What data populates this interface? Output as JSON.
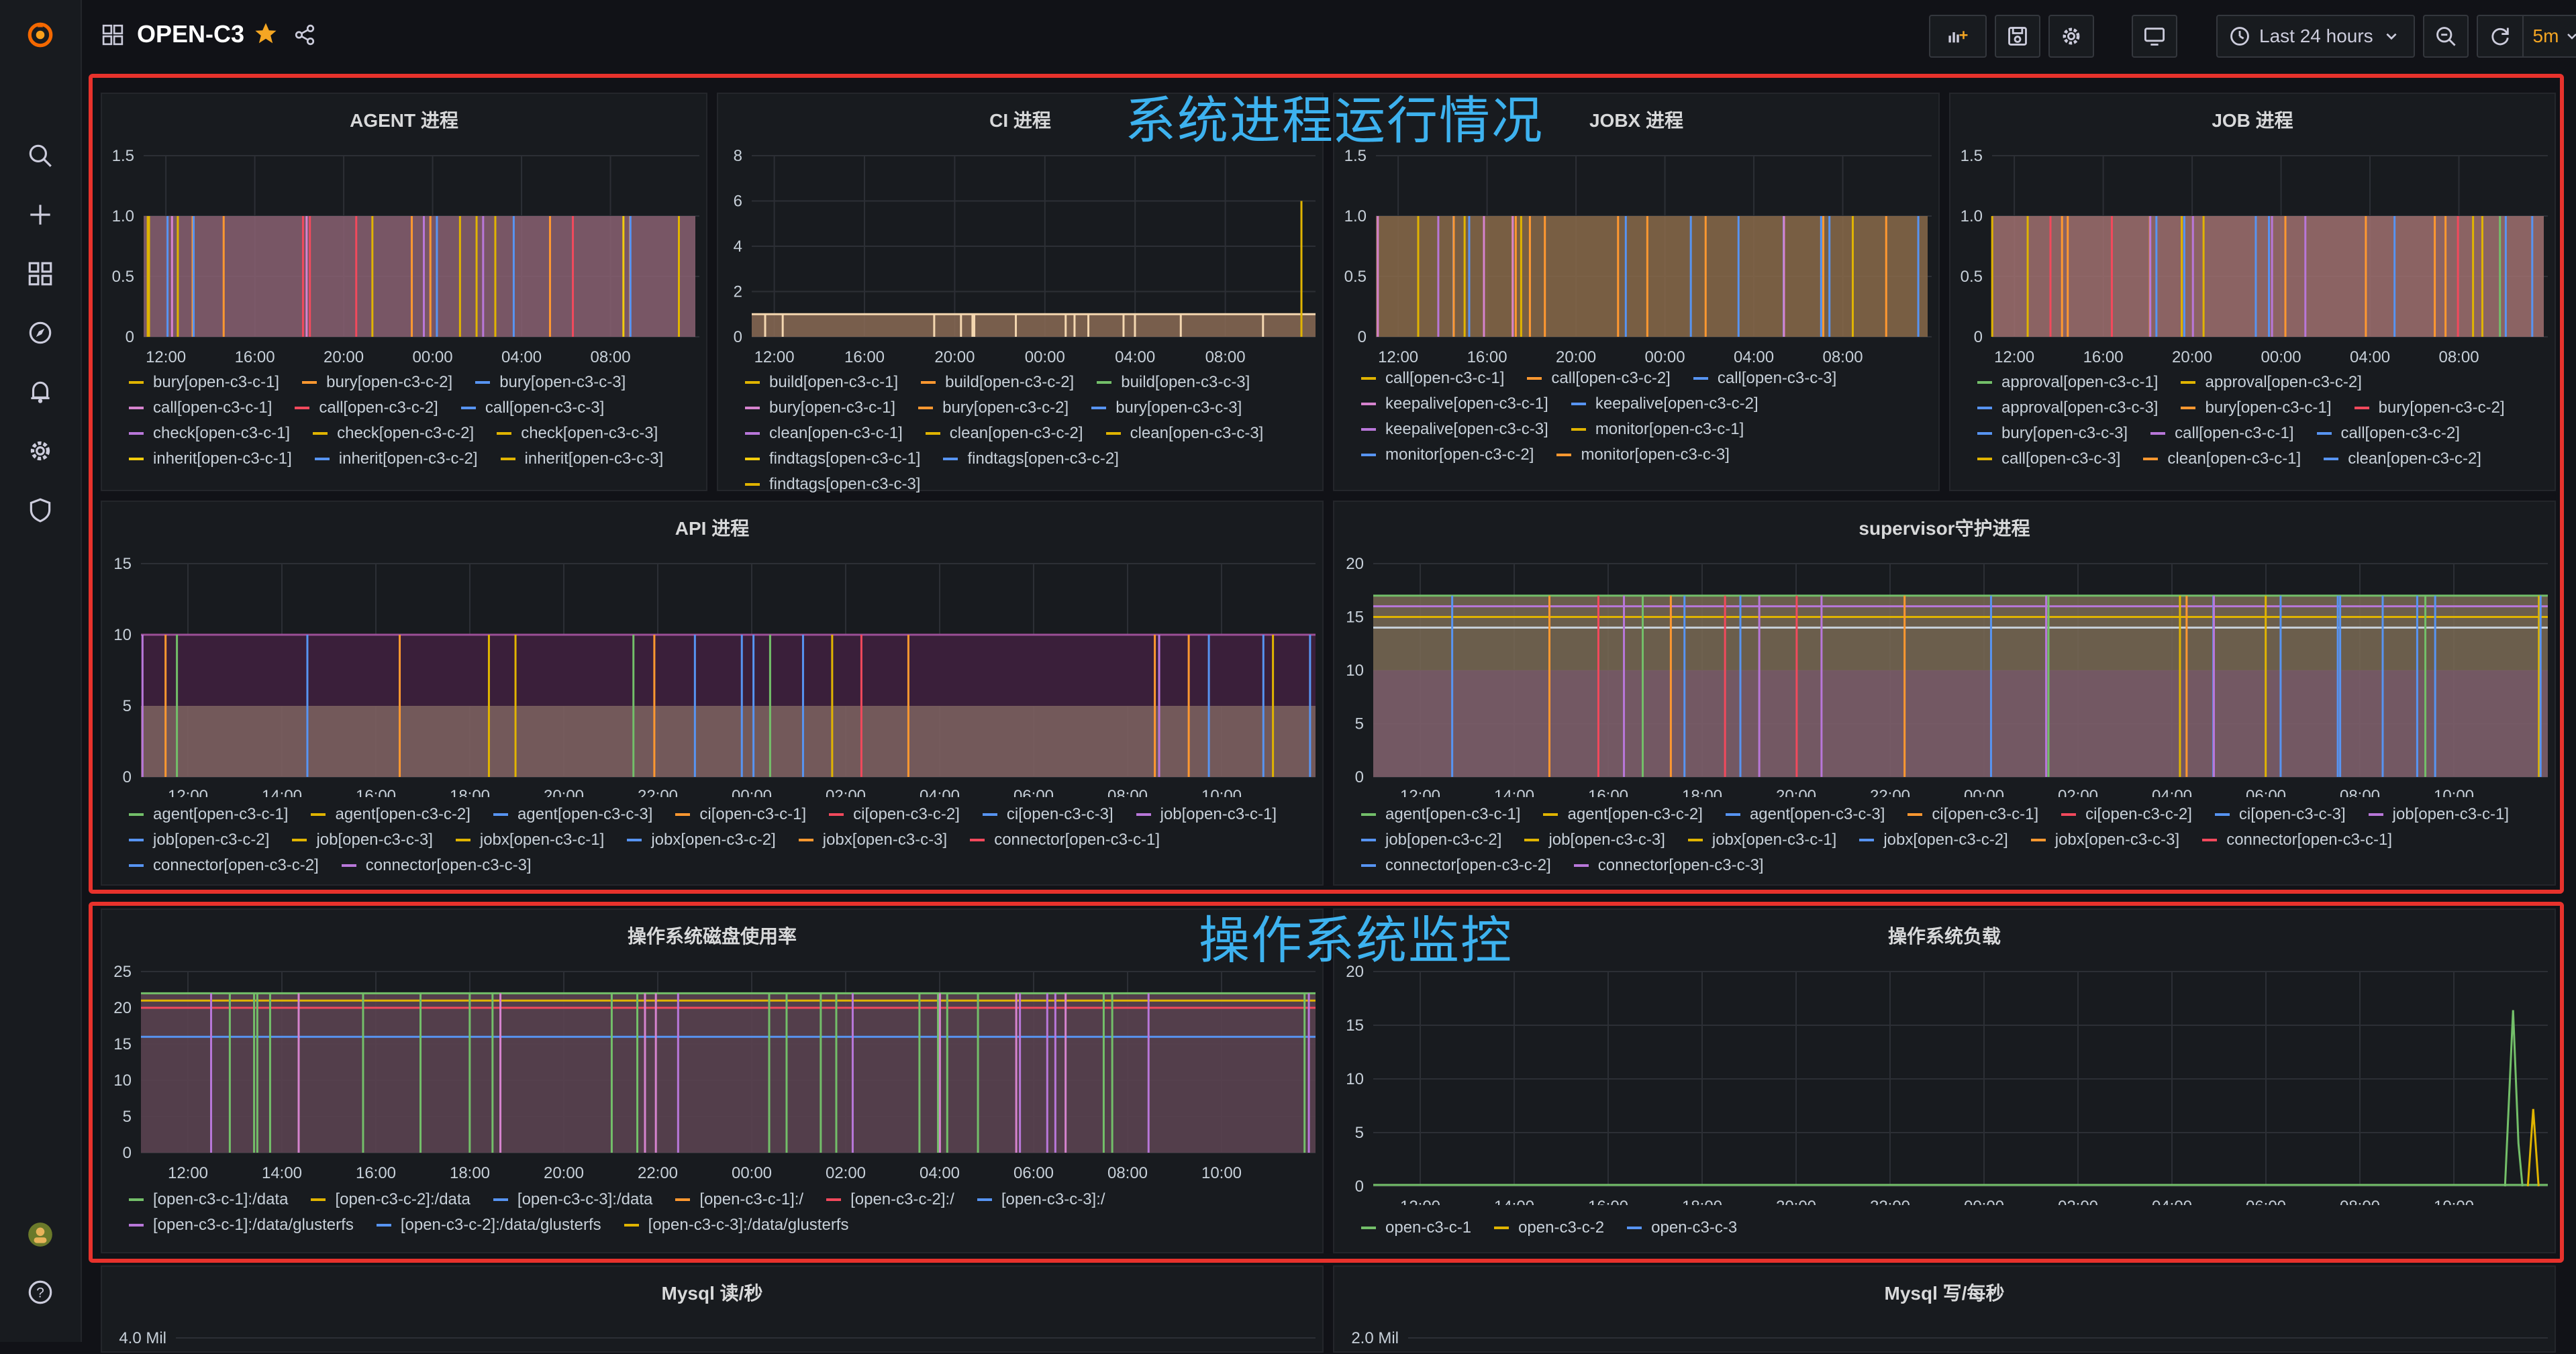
{
  "sidebar": {
    "items": [
      "grafana-logo",
      "search",
      "create",
      "dashboards",
      "explore",
      "alerting",
      "configuration",
      "server-admin",
      "user-avatar",
      "help"
    ]
  },
  "header": {
    "title": "OPEN-C3",
    "time_range": "Last 24 hours",
    "refresh_interval": "5m"
  },
  "overlays": {
    "process_label": "系统进程运行情况",
    "os_label": "操作系统监控"
  },
  "colors": {
    "background": "#111217",
    "panel": "#181b1f",
    "highlight": "#e8322c",
    "overlay_text": "#3db2ef",
    "star": "#f5a623"
  },
  "panels": [
    {
      "id": "agent",
      "title": "AGENT 进程",
      "yticks": [
        "1.5",
        "1.0",
        "0.5",
        "0"
      ],
      "xticks": [
        "12:00",
        "16:00",
        "20:00",
        "00:00",
        "04:00",
        "08:00"
      ],
      "legend": [
        {
          "name": "bury[open-c3-c-1]",
          "color": "#e0b400"
        },
        {
          "name": "bury[open-c3-c-2]",
          "color": "#ff9830"
        },
        {
          "name": "bury[open-c3-c-3]",
          "color": "#5794f2"
        },
        {
          "name": "call[open-c3-c-1]",
          "color": "#d683ce"
        },
        {
          "name": "call[open-c3-c-2]",
          "color": "#f2495c"
        },
        {
          "name": "call[open-c3-c-3]",
          "color": "#5794f2"
        },
        {
          "name": "check[open-c3-c-1]",
          "color": "#b877d9"
        },
        {
          "name": "check[open-c3-c-2]",
          "color": "#e0b400"
        },
        {
          "name": "check[open-c3-c-3]",
          "color": "#e0b400"
        },
        {
          "name": "inherit[open-c3-c-1]",
          "color": "#f2cc0c"
        },
        {
          "name": "inherit[open-c3-c-2]",
          "color": "#5794f2"
        },
        {
          "name": "inherit[open-c3-c-3]",
          "color": "#e0b400"
        }
      ]
    },
    {
      "id": "ci",
      "title": "CI 进程",
      "yticks": [
        "8",
        "6",
        "4",
        "2",
        "0"
      ],
      "xticks": [
        "12:00",
        "16:00",
        "20:00",
        "00:00",
        "04:00",
        "08:00"
      ],
      "legend": [
        {
          "name": "build[open-c3-c-1]",
          "color": "#e0b400"
        },
        {
          "name": "build[open-c3-c-2]",
          "color": "#ff9830"
        },
        {
          "name": "build[open-c3-c-3]",
          "color": "#73bf69"
        },
        {
          "name": "bury[open-c3-c-1]",
          "color": "#d683ce"
        },
        {
          "name": "bury[open-c3-c-2]",
          "color": "#ff9830"
        },
        {
          "name": "bury[open-c3-c-3]",
          "color": "#5794f2"
        },
        {
          "name": "clean[open-c3-c-1]",
          "color": "#b877d9"
        },
        {
          "name": "clean[open-c3-c-2]",
          "color": "#e0b400"
        },
        {
          "name": "clean[open-c3-c-3]",
          "color": "#e0b400"
        },
        {
          "name": "findtags[open-c3-c-1]",
          "color": "#f2cc0c"
        },
        {
          "name": "findtags[open-c3-c-2]",
          "color": "#5794f2"
        },
        {
          "name": "findtags[open-c3-c-3]",
          "color": "#e0b400"
        }
      ]
    },
    {
      "id": "jobx",
      "title": "JOBX 进程",
      "yticks": [
        "1.5",
        "1.0",
        "0.5",
        "0"
      ],
      "xticks": [
        "12:00",
        "16:00",
        "20:00",
        "00:00",
        "04:00",
        "08:00"
      ],
      "legend": [
        {
          "name": "call[open-c3-c-1]",
          "color": "#e0b400"
        },
        {
          "name": "call[open-c3-c-2]",
          "color": "#ff9830"
        },
        {
          "name": "call[open-c3-c-3]",
          "color": "#5794f2"
        },
        {
          "name": "keepalive[open-c3-c-1]",
          "color": "#d683ce"
        },
        {
          "name": "keepalive[open-c3-c-2]",
          "color": "#5794f2"
        },
        {
          "name": "keepalive[open-c3-c-3]",
          "color": "#b877d9"
        },
        {
          "name": "monitor[open-c3-c-1]",
          "color": "#e0b400"
        },
        {
          "name": "monitor[open-c3-c-2]",
          "color": "#5794f2"
        },
        {
          "name": "monitor[open-c3-c-3]",
          "color": "#ff9830"
        }
      ]
    },
    {
      "id": "job",
      "title": "JOB 进程",
      "yticks": [
        "1.5",
        "1.0",
        "0.5",
        "0"
      ],
      "xticks": [
        "12:00",
        "16:00",
        "20:00",
        "00:00",
        "04:00",
        "08:00"
      ],
      "legend": [
        {
          "name": "approval[open-c3-c-1]",
          "color": "#73bf69"
        },
        {
          "name": "approval[open-c3-c-2]",
          "color": "#e0b400"
        },
        {
          "name": "approval[open-c3-c-3]",
          "color": "#5794f2"
        },
        {
          "name": "bury[open-c3-c-1]",
          "color": "#ff9830"
        },
        {
          "name": "bury[open-c3-c-2]",
          "color": "#f2495c"
        },
        {
          "name": "bury[open-c3-c-3]",
          "color": "#5794f2"
        },
        {
          "name": "call[open-c3-c-1]",
          "color": "#b877d9"
        },
        {
          "name": "call[open-c3-c-2]",
          "color": "#5794f2"
        },
        {
          "name": "call[open-c3-c-3]",
          "color": "#e0b400"
        },
        {
          "name": "clean[open-c3-c-1]",
          "color": "#ff9830"
        },
        {
          "name": "clean[open-c3-c-2]",
          "color": "#5794f2"
        }
      ]
    },
    {
      "id": "api",
      "title": "API 进程",
      "yticks": [
        "15",
        "10",
        "5",
        "0"
      ],
      "xticks": [
        "12:00",
        "14:00",
        "16:00",
        "18:00",
        "20:00",
        "22:00",
        "00:00",
        "02:00",
        "04:00",
        "06:00",
        "08:00",
        "10:00"
      ],
      "legend": [
        {
          "name": "agent[open-c3-c-1]",
          "color": "#73bf69"
        },
        {
          "name": "agent[open-c3-c-2]",
          "color": "#e0b400"
        },
        {
          "name": "agent[open-c3-c-3]",
          "color": "#5794f2"
        },
        {
          "name": "ci[open-c3-c-1]",
          "color": "#ff9830"
        },
        {
          "name": "ci[open-c3-c-2]",
          "color": "#f2495c"
        },
        {
          "name": "ci[open-c3-c-3]",
          "color": "#5794f2"
        },
        {
          "name": "job[open-c3-c-1]",
          "color": "#b877d9"
        },
        {
          "name": "job[open-c3-c-2]",
          "color": "#5794f2"
        },
        {
          "name": "job[open-c3-c-3]",
          "color": "#e0b400"
        },
        {
          "name": "jobx[open-c3-c-1]",
          "color": "#e0b400"
        },
        {
          "name": "jobx[open-c3-c-2]",
          "color": "#5794f2"
        },
        {
          "name": "jobx[open-c3-c-3]",
          "color": "#ff9830"
        },
        {
          "name": "connector[open-c3-c-1]",
          "color": "#f2495c"
        },
        {
          "name": "connector[open-c3-c-2]",
          "color": "#5794f2"
        },
        {
          "name": "connector[open-c3-c-3]",
          "color": "#b877d9"
        }
      ]
    },
    {
      "id": "supervisor",
      "title": "supervisor守护进程",
      "yticks": [
        "20",
        "15",
        "10",
        "5",
        "0"
      ],
      "xticks": [
        "12:00",
        "14:00",
        "16:00",
        "18:00",
        "20:00",
        "22:00",
        "00:00",
        "02:00",
        "04:00",
        "06:00",
        "08:00",
        "10:00"
      ],
      "legend": [
        {
          "name": "agent[open-c3-c-1]",
          "color": "#73bf69"
        },
        {
          "name": "agent[open-c3-c-2]",
          "color": "#e0b400"
        },
        {
          "name": "agent[open-c3-c-3]",
          "color": "#5794f2"
        },
        {
          "name": "ci[open-c3-c-1]",
          "color": "#ff9830"
        },
        {
          "name": "ci[open-c3-c-2]",
          "color": "#f2495c"
        },
        {
          "name": "ci[open-c3-c-3]",
          "color": "#5794f2"
        },
        {
          "name": "job[open-c3-c-1]",
          "color": "#b877d9"
        },
        {
          "name": "job[open-c3-c-2]",
          "color": "#5794f2"
        },
        {
          "name": "job[open-c3-c-3]",
          "color": "#e0b400"
        },
        {
          "name": "jobx[open-c3-c-1]",
          "color": "#e0b400"
        },
        {
          "name": "jobx[open-c3-c-2]",
          "color": "#5794f2"
        },
        {
          "name": "jobx[open-c3-c-3]",
          "color": "#ff9830"
        },
        {
          "name": "connector[open-c3-c-1]",
          "color": "#f2495c"
        },
        {
          "name": "connector[open-c3-c-2]",
          "color": "#5794f2"
        },
        {
          "name": "connector[open-c3-c-3]",
          "color": "#b877d9"
        }
      ]
    },
    {
      "id": "disk",
      "title": "操作系统磁盘使用率",
      "yticks": [
        "25",
        "20",
        "15",
        "10",
        "5",
        "0"
      ],
      "xticks": [
        "12:00",
        "14:00",
        "16:00",
        "18:00",
        "20:00",
        "22:00",
        "00:00",
        "02:00",
        "04:00",
        "06:00",
        "08:00",
        "10:00"
      ],
      "legend": [
        {
          "name": "[open-c3-c-1]:/data",
          "color": "#73bf69"
        },
        {
          "name": "[open-c3-c-2]:/data",
          "color": "#e0b400"
        },
        {
          "name": "[open-c3-c-3]:/data",
          "color": "#5794f2"
        },
        {
          "name": "[open-c3-c-1]:/",
          "color": "#ff9830"
        },
        {
          "name": "[open-c3-c-2]:/",
          "color": "#f2495c"
        },
        {
          "name": "[open-c3-c-3]:/",
          "color": "#5794f2"
        },
        {
          "name": "[open-c3-c-1]:/data/glusterfs",
          "color": "#b877d9"
        },
        {
          "name": "[open-c3-c-2]:/data/glusterfs",
          "color": "#5794f2"
        },
        {
          "name": "[open-c3-c-3]:/data/glusterfs",
          "color": "#e0b400"
        }
      ]
    },
    {
      "id": "load",
      "title": "操作系统负载",
      "yticks": [
        "20",
        "15",
        "10",
        "5",
        "0"
      ],
      "xticks": [
        "12:00",
        "14:00",
        "16:00",
        "18:00",
        "20:00",
        "22:00",
        "00:00",
        "02:00",
        "04:00",
        "06:00",
        "08:00",
        "10:00"
      ],
      "legend": [
        {
          "name": "open-c3-c-1",
          "color": "#73bf69"
        },
        {
          "name": "open-c3-c-2",
          "color": "#e0b400"
        },
        {
          "name": "open-c3-c-3",
          "color": "#5794f2"
        }
      ]
    },
    {
      "id": "mysql-read",
      "title": "Mysql 读/秒",
      "yticks": [
        "4.0 Mil"
      ],
      "xticks": [],
      "legend": []
    },
    {
      "id": "mysql-write",
      "title": "Mysql 写/每秒",
      "yticks": [
        "2.0 Mil"
      ],
      "xticks": [],
      "legend": []
    }
  ]
}
